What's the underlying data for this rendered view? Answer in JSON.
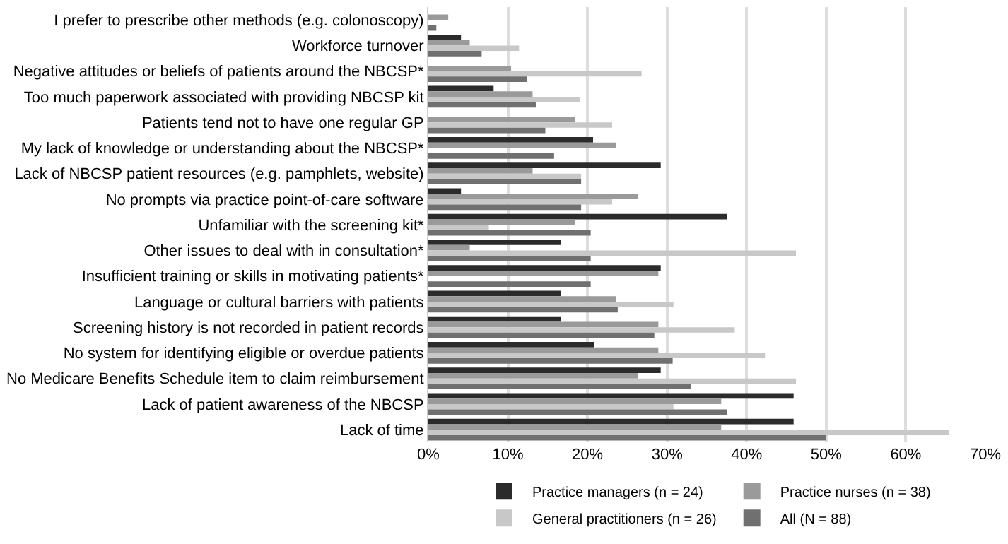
{
  "chart_data": {
    "type": "bar",
    "orientation": "horizontal",
    "categories": [
      "I prefer to prescribe other methods (e.g. colonoscopy)",
      "Workforce turnover",
      "Negative attitudes or beliefs of patients around the NBCSP*",
      "Too much paperwork associated with providing NBCSP kit",
      "Patients tend not to have one regular GP",
      "My lack of knowledge or understanding about the NBCSP*",
      "Lack of NBCSP patient resources (e.g. pamphlets, website)",
      "No prompts via practice point-of-care software",
      "Unfamiliar with the screening kit*",
      "Other issues to deal with in consultation*",
      "Insufficient training or skills in motivating patients*",
      "Language or cultural barriers with patients",
      "Screening history is not recorded in patient records",
      "No system for identifying eligible or overdue patients",
      "No Medicare Benefits Schedule item to claim reimbursement",
      "Lack of patient awareness of the NBCSP",
      "Lack of time"
    ],
    "series": [
      {
        "name": "Practice managers (n = 24)",
        "color": "#2b2b2b",
        "values": [
          0,
          4.1,
          0,
          8.2,
          0,
          20.7,
          29.2,
          4.1,
          37.5,
          16.7,
          29.2,
          16.7,
          16.7,
          20.8,
          29.2,
          45.9,
          45.9
        ]
      },
      {
        "name": "Practice nurses (n = 38)",
        "color": "#9a9a9a",
        "values": [
          2.5,
          5.2,
          10.4,
          13.1,
          18.4,
          23.6,
          13.1,
          26.3,
          18.4,
          5.2,
          28.9,
          23.6,
          28.9,
          28.9,
          26.3,
          36.8,
          36.8
        ]
      },
      {
        "name": "General practitioners (n = 26)",
        "color": "#c8c8c8",
        "values": [
          0,
          11.4,
          26.8,
          19.1,
          23.1,
          0,
          19.2,
          23.1,
          7.6,
          46.2,
          0,
          30.8,
          38.5,
          42.3,
          46.2,
          30.8,
          65.4
        ]
      },
      {
        "name": "All (N = 88)",
        "color": "#707070",
        "values": [
          1.0,
          6.7,
          12.4,
          13.5,
          14.7,
          15.8,
          19.2,
          19.2,
          20.4,
          20.4,
          20.4,
          23.8,
          28.4,
          30.7,
          33.0,
          37.5,
          50.0
        ]
      }
    ],
    "xlim": [
      0,
      70
    ],
    "xticks": [
      {
        "value": 0,
        "label": "0%"
      },
      {
        "value": 10,
        "label": "10%"
      },
      {
        "value": 20,
        "label": "20%"
      },
      {
        "value": 30,
        "label": "30%"
      },
      {
        "value": 40,
        "label": "40%"
      },
      {
        "value": 50,
        "label": "50%"
      },
      {
        "value": 60,
        "label": "60%"
      },
      {
        "value": 70,
        "label": "70%"
      }
    ],
    "grid": "x",
    "legend": "bottom"
  }
}
